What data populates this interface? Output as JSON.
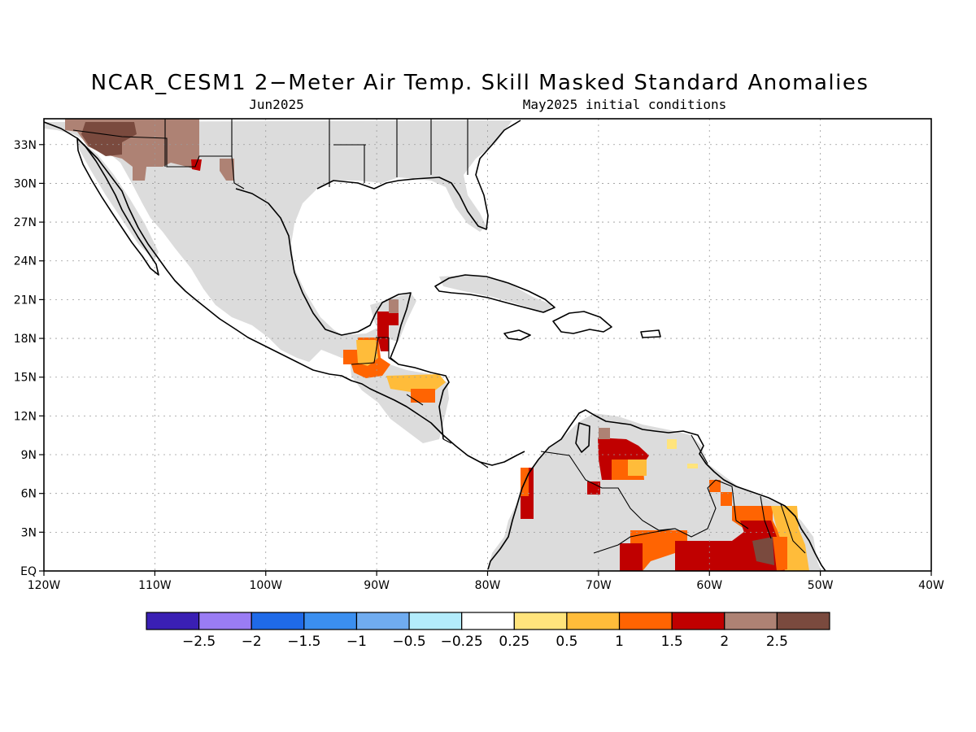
{
  "title": "NCAR_CESM1 2−Meter Air Temp. Skill Masked Standard Anomalies",
  "subtitle_left": "Jun2025",
  "subtitle_right": "May2025 initial conditions",
  "map": {
    "lon_range": [
      -120,
      -40
    ],
    "lat_range": [
      0,
      35
    ],
    "x_ticks": [
      {
        "lon": -120,
        "label": "120W"
      },
      {
        "lon": -110,
        "label": "110W"
      },
      {
        "lon": -100,
        "label": "100W"
      },
      {
        "lon": -90,
        "label": "90W"
      },
      {
        "lon": -80,
        "label": "80W"
      },
      {
        "lon": -70,
        "label": "70W"
      },
      {
        "lon": -60,
        "label": "60W"
      },
      {
        "lon": -50,
        "label": "50W"
      },
      {
        "lon": -40,
        "label": "40W"
      }
    ],
    "y_ticks": [
      {
        "lat": 0,
        "label": "EQ"
      },
      {
        "lat": 3,
        "label": "3N"
      },
      {
        "lat": 6,
        "label": "6N"
      },
      {
        "lat": 9,
        "label": "9N"
      },
      {
        "lat": 12,
        "label": "12N"
      },
      {
        "lat": 15,
        "label": "15N"
      },
      {
        "lat": 18,
        "label": "18N"
      },
      {
        "lat": 21,
        "label": "21N"
      },
      {
        "lat": 24,
        "label": "24N"
      },
      {
        "lat": 27,
        "label": "27N"
      },
      {
        "lat": 30,
        "label": "30N"
      },
      {
        "lat": 33,
        "label": "33N"
      }
    ],
    "grid": true,
    "no_skill_color": "#dcdcdc"
  },
  "colorbar": {
    "colors": [
      "#3a1fb4",
      "#9a7cf4",
      "#1f6ae8",
      "#3b8ff0",
      "#70acf0",
      "#b3ecfc",
      "#ffffff",
      "#ffe47c",
      "#ffbc3a",
      "#ff6402",
      "#c00000",
      "#ae8274",
      "#7a4a3e"
    ],
    "labels": [
      "−2.5",
      "−2",
      "−1.5",
      "−1",
      "−0.5",
      "−0.25",
      "0.25",
      "0.5",
      "1",
      "1.5",
      "2",
      "2.5"
    ]
  }
}
